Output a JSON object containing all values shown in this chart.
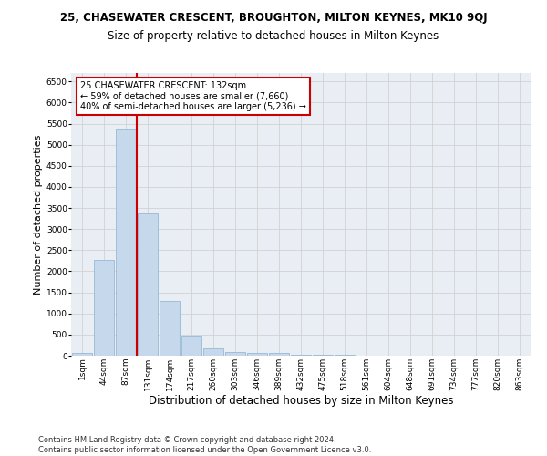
{
  "title": "25, CHASEWATER CRESCENT, BROUGHTON, MILTON KEYNES, MK10 9QJ",
  "subtitle": "Size of property relative to detached houses in Milton Keynes",
  "xlabel": "Distribution of detached houses by size in Milton Keynes",
  "ylabel": "Number of detached properties",
  "bar_color": "#c5d8ec",
  "bar_edge_color": "#8ab0cc",
  "grid_color": "#cccccc",
  "bg_color": "#e8eef4",
  "annotation_text": "25 CHASEWATER CRESCENT: 132sqm\n← 59% of detached houses are smaller (7,660)\n40% of semi-detached houses are larger (5,236) →",
  "annotation_box_color": "#ffffff",
  "annotation_border_color": "#cc0000",
  "vline_color": "#cc0000",
  "vline_x_index": 3,
  "categories": [
    "1sqm",
    "44sqm",
    "87sqm",
    "131sqm",
    "174sqm",
    "217sqm",
    "260sqm",
    "303sqm",
    "346sqm",
    "389sqm",
    "432sqm",
    "475sqm",
    "518sqm",
    "561sqm",
    "604sqm",
    "648sqm",
    "691sqm",
    "734sqm",
    "777sqm",
    "820sqm",
    "863sqm"
  ],
  "values": [
    75,
    2270,
    5380,
    3380,
    1295,
    480,
    165,
    95,
    75,
    55,
    30,
    20,
    15,
    10,
    8,
    5,
    3,
    2,
    2,
    1,
    1
  ],
  "ylim": [
    0,
    6700
  ],
  "yticks": [
    0,
    500,
    1000,
    1500,
    2000,
    2500,
    3000,
    3500,
    4000,
    4500,
    5000,
    5500,
    6000,
    6500
  ],
  "footer": "Contains HM Land Registry data © Crown copyright and database right 2024.\nContains public sector information licensed under the Open Government Licence v3.0.",
  "title_fontsize": 8.5,
  "subtitle_fontsize": 8.5,
  "ylabel_fontsize": 8,
  "xlabel_fontsize": 8.5,
  "tick_fontsize": 6.5,
  "footer_fontsize": 6.0,
  "annotation_fontsize": 7.0
}
